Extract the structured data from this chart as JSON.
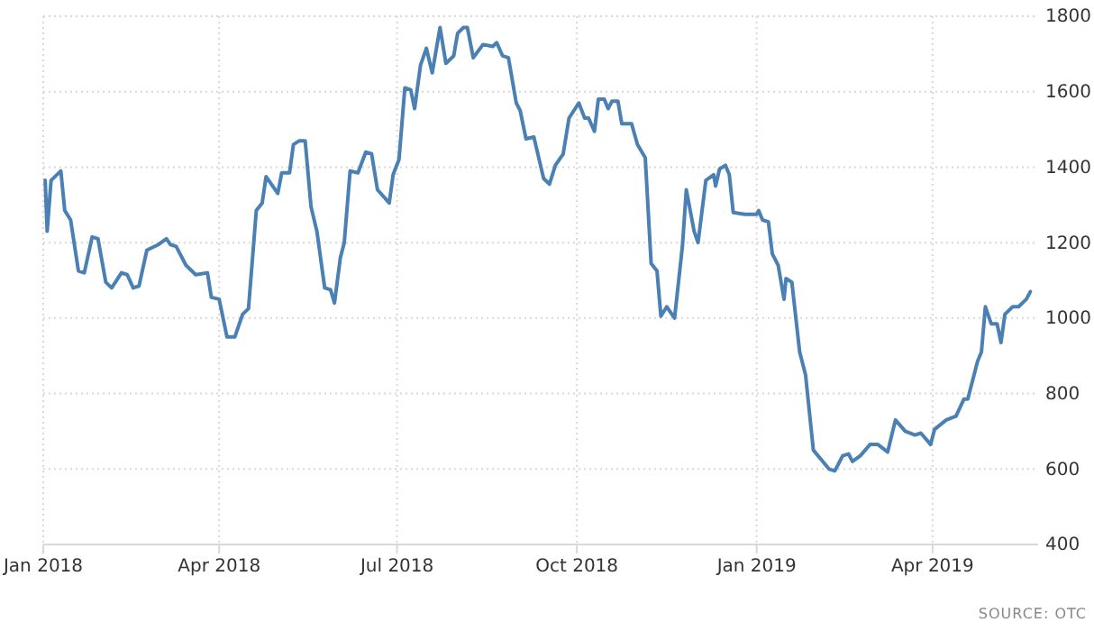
{
  "chart_data": {
    "type": "line",
    "x": [
      "2018-01-02",
      "2018-01-03",
      "2018-01-05",
      "2018-01-10",
      "2018-01-12",
      "2018-01-15",
      "2018-01-19",
      "2018-01-22",
      "2018-01-26",
      "2018-01-29",
      "2018-02-02",
      "2018-02-05",
      "2018-02-10",
      "2018-02-13",
      "2018-02-16",
      "2018-02-19",
      "2018-02-23",
      "2018-03-01",
      "2018-03-05",
      "2018-03-07",
      "2018-03-10",
      "2018-03-15",
      "2018-03-20",
      "2018-03-26",
      "2018-03-28",
      "2018-04-01",
      "2018-04-05",
      "2018-04-09",
      "2018-04-13",
      "2018-04-16",
      "2018-04-20",
      "2018-04-23",
      "2018-04-25",
      "2018-05-01",
      "2018-05-03",
      "2018-05-07",
      "2018-05-09",
      "2018-05-12",
      "2018-05-15",
      "2018-05-18",
      "2018-05-21",
      "2018-05-25",
      "2018-05-28",
      "2018-05-30",
      "2018-06-02",
      "2018-06-04",
      "2018-06-07",
      "2018-06-11",
      "2018-06-15",
      "2018-06-18",
      "2018-06-21",
      "2018-06-27",
      "2018-06-29",
      "2018-07-02",
      "2018-07-05",
      "2018-07-08",
      "2018-07-10",
      "2018-07-13",
      "2018-07-16",
      "2018-07-19",
      "2018-07-21",
      "2018-07-23",
      "2018-07-26",
      "2018-07-30",
      "2018-08-01",
      "2018-08-04",
      "2018-08-06",
      "2018-08-09",
      "2018-08-14",
      "2018-08-19",
      "2018-08-21",
      "2018-08-24",
      "2018-08-27",
      "2018-08-31",
      "2018-09-02",
      "2018-09-05",
      "2018-09-09",
      "2018-09-14",
      "2018-09-17",
      "2018-09-20",
      "2018-09-24",
      "2018-09-27",
      "2018-10-02",
      "2018-10-05",
      "2018-10-07",
      "2018-10-10",
      "2018-10-12",
      "2018-10-15",
      "2018-10-17",
      "2018-10-19",
      "2018-10-22",
      "2018-10-24",
      "2018-10-29",
      "2018-11-01",
      "2018-11-05",
      "2018-11-08",
      "2018-11-11",
      "2018-11-13",
      "2018-11-16",
      "2018-11-20",
      "2018-11-24",
      "2018-11-26",
      "2018-11-30",
      "2018-12-02",
      "2018-12-06",
      "2018-12-10",
      "2018-12-11",
      "2018-12-13",
      "2018-12-16",
      "2018-12-18",
      "2018-12-20",
      "2018-12-26",
      "2019-01-01",
      "2019-01-02",
      "2019-01-04",
      "2019-01-07",
      "2019-01-09",
      "2019-01-12",
      "2019-01-15",
      "2019-01-16",
      "2019-01-19",
      "2019-01-23",
      "2019-01-26",
      "2019-01-30",
      "2019-02-03",
      "2019-02-07",
      "2019-02-10",
      "2019-02-14",
      "2019-02-17",
      "2019-02-19",
      "2019-02-23",
      "2019-02-28",
      "2019-03-04",
      "2019-03-09",
      "2019-03-13",
      "2019-03-18",
      "2019-03-23",
      "2019-03-26",
      "2019-03-31",
      "2019-04-02",
      "2019-04-08",
      "2019-04-13",
      "2019-04-17",
      "2019-04-19",
      "2019-04-24",
      "2019-04-26",
      "2019-04-28",
      "2019-05-01",
      "2019-05-04",
      "2019-05-06",
      "2019-05-08",
      "2019-05-12",
      "2019-05-15",
      "2019-05-19",
      "2019-05-21"
    ],
    "series": [
      {
        "color": "#4a80b4",
        "values": [
          1365,
          1230,
          1365,
          1390,
          1285,
          1260,
          1125,
          1120,
          1215,
          1210,
          1095,
          1080,
          1120,
          1115,
          1080,
          1085,
          1180,
          1195,
          1210,
          1195,
          1190,
          1140,
          1115,
          1120,
          1055,
          1050,
          950,
          950,
          1010,
          1025,
          1285,
          1305,
          1375,
          1330,
          1385,
          1385,
          1460,
          1470,
          1470,
          1295,
          1230,
          1080,
          1075,
          1040,
          1160,
          1200,
          1390,
          1385,
          1440,
          1435,
          1340,
          1305,
          1380,
          1420,
          1610,
          1605,
          1555,
          1670,
          1715,
          1650,
          1710,
          1770,
          1675,
          1695,
          1755,
          1770,
          1770,
          1690,
          1725,
          1720,
          1730,
          1695,
          1690,
          1570,
          1550,
          1475,
          1480,
          1370,
          1355,
          1405,
          1435,
          1530,
          1570,
          1530,
          1530,
          1495,
          1580,
          1580,
          1555,
          1575,
          1575,
          1515,
          1515,
          1460,
          1425,
          1145,
          1125,
          1005,
          1030,
          1000,
          1190,
          1340,
          1230,
          1200,
          1365,
          1380,
          1350,
          1395,
          1405,
          1380,
          1280,
          1275,
          1275,
          1285,
          1260,
          1255,
          1170,
          1140,
          1050,
          1105,
          1095,
          910,
          850,
          650,
          625,
          600,
          595,
          635,
          640,
          620,
          635,
          665,
          665,
          645,
          730,
          700,
          690,
          695,
          665,
          705,
          730,
          740,
          785,
          785,
          885,
          910,
          1030,
          985,
          985,
          935,
          1010,
          1030,
          1030,
          1050,
          1070
        ]
      }
    ],
    "xlim": [
      "2018-01-01",
      "2019-05-25"
    ],
    "xticks": [
      {
        "value": "2018-01-01",
        "label": "Jan 2018"
      },
      {
        "value": "2018-04-01",
        "label": "Apr 2018"
      },
      {
        "value": "2018-07-01",
        "label": "Jul 2018"
      },
      {
        "value": "2018-10-01",
        "label": "Oct 2018"
      },
      {
        "value": "2019-01-01",
        "label": "Jan 2019"
      },
      {
        "value": "2019-04-01",
        "label": "Apr 2019"
      }
    ],
    "ylim": [
      400,
      1800
    ],
    "yticks": [
      400,
      600,
      800,
      1000,
      1200,
      1400,
      1600,
      1800
    ],
    "grid": true,
    "marker": "none",
    "line_style": "solid",
    "annotations": [
      "SOURCE: OTC"
    ]
  }
}
